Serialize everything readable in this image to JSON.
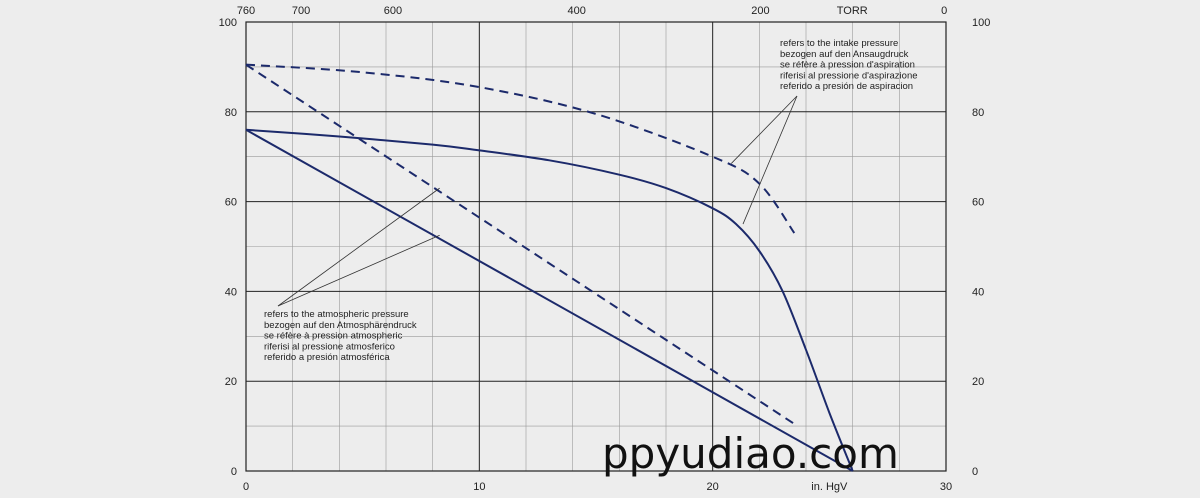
{
  "chart_data": {
    "type": "line",
    "title": "",
    "xlabel": "in. HgV",
    "ylabel": "",
    "xlim": [
      0,
      30
    ],
    "ylim": [
      0,
      100
    ],
    "x_ticks": [
      0,
      10,
      20,
      30
    ],
    "x_tick_labels": [
      "0",
      "10",
      "20",
      "in. HgV",
      "30"
    ],
    "y_ticks": [
      0,
      20,
      40,
      60,
      80,
      100
    ],
    "top_axis": {
      "label": "TORR",
      "ticks": [
        760,
        700,
        600,
        400,
        200,
        0
      ],
      "tick_labels": [
        "760",
        "700",
        "600",
        "400",
        "200",
        "TORR",
        "0"
      ]
    },
    "grid": true,
    "line_color": "#1c2a6b",
    "series": [
      {
        "style": "solid",
        "x": [
          0,
          4,
          8,
          10,
          13,
          16,
          18,
          20,
          21,
          22,
          23,
          24,
          25,
          26
        ],
        "y": [
          76,
          74.5,
          72.7,
          71.4,
          69.2,
          66,
          63,
          58.5,
          55,
          49,
          40,
          27,
          13,
          0
        ]
      },
      {
        "style": "solid",
        "x": [
          0,
          26
        ],
        "y": [
          76,
          0
        ]
      },
      {
        "style": "dashed",
        "x": [
          0,
          5,
          10,
          15,
          20,
          22,
          23.5
        ],
        "y": [
          90.5,
          88.8,
          85.5,
          79.5,
          70,
          64,
          53
        ]
      },
      {
        "style": "dashed",
        "x": [
          0,
          23.5
        ],
        "y": [
          90.5,
          10.5
        ]
      }
    ],
    "annotations": [
      {
        "lines": [
          "refers to the intake pressure",
          "bezogen auf den Ansaugdruck",
          "se réfère à pression d'aspiration",
          "riferisi al pressione d'aspirazione",
          "referido a presión de aspiracion"
        ],
        "points_to": [
          [
            20.8,
            68.5
          ],
          [
            21.3,
            55
          ]
        ]
      },
      {
        "lines": [
          "refers to the atmospheric pressure",
          "bezogen auf den Atmosphärendruck",
          "se réfère à pression atmospheric",
          "riferisi al pressione atmosferico",
          "referido a presión atmosférica"
        ],
        "points_to": [
          [
            8.3,
            63
          ],
          [
            8.3,
            52.5
          ]
        ]
      }
    ]
  },
  "watermark": "ppyudiao.com"
}
